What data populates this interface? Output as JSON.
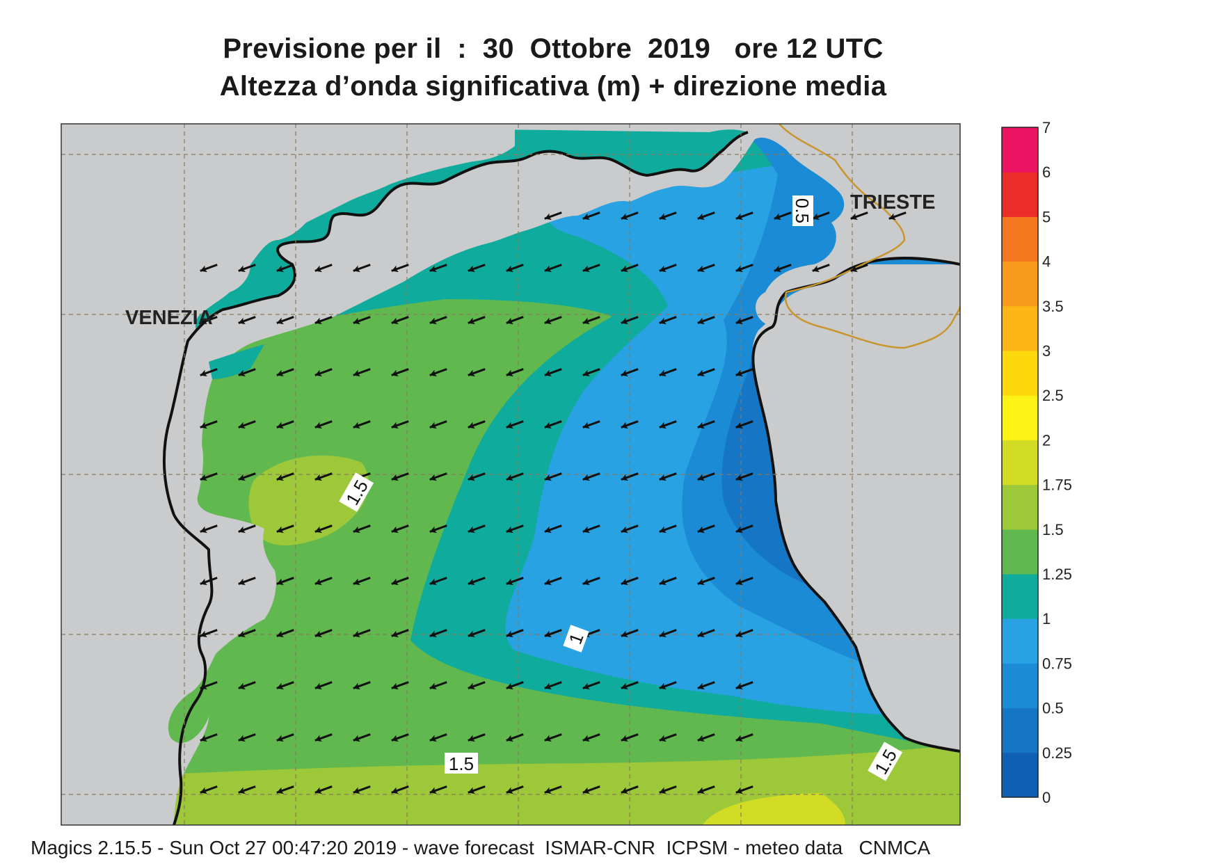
{
  "title_line1": "Previsione per il  :  30  Ottobre  2019   ore 12 UTC",
  "title_line2": "Altezza d’onda significativa (m) + direzione media",
  "footer": "Magics 2.15.5 - Sun Oct 27 00:47:20 2019 - wave forecast  ISMAR-CNR  ICPSM - meteo data   CNMCA",
  "cities": [
    {
      "name": "VENEZIA",
      "id": "venezia"
    },
    {
      "name": "TRIESTE",
      "id": "trieste"
    }
  ],
  "legend": {
    "levels": [
      "0",
      "0.25",
      "0.5",
      "0.75",
      "1",
      "1.25",
      "1.5",
      "1.75",
      "2",
      "2.5",
      "3",
      "3.5",
      "4",
      "5",
      "6",
      "7"
    ],
    "colors": [
      "#0f5fb4",
      "#1576c6",
      "#1b8bd6",
      "#28a2e3",
      "#0fab9c",
      "#60b84f",
      "#9dc83a",
      "#d3dc24",
      "#fcf314",
      "#fcd80c",
      "#fbb514",
      "#f89a1c",
      "#f5771f",
      "#ec2c29",
      "#eb1463"
    ]
  },
  "contour_labels": [
    "0.5",
    "1.5",
    "1",
    "1.5",
    "1.5"
  ],
  "wave_direction": "from east-northeast toward west-southwest",
  "colors": {
    "land": "#cacbcd",
    "coast": "#111111",
    "grid": "#8a7a5a",
    "border": "#c8962e",
    "arrow": "#111111"
  }
}
